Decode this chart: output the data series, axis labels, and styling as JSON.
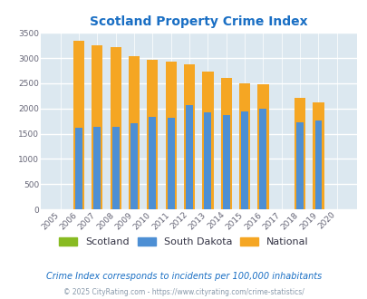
{
  "title": "Scotland Property Crime Index",
  "title_color": "#1a6fc4",
  "years": [
    2005,
    2006,
    2007,
    2008,
    2009,
    2010,
    2011,
    2012,
    2013,
    2014,
    2015,
    2016,
    2017,
    2018,
    2019,
    2020
  ],
  "scotland": [
    0,
    0,
    0,
    0,
    0,
    0,
    0,
    0,
    0,
    0,
    0,
    0,
    0,
    0,
    0,
    0
  ],
  "south_dakota": [
    0,
    1620,
    1640,
    1640,
    1700,
    1840,
    1820,
    2060,
    1930,
    1870,
    1950,
    2000,
    0,
    1720,
    1770,
    0
  ],
  "national": [
    0,
    3340,
    3260,
    3210,
    3040,
    2960,
    2930,
    2870,
    2730,
    2600,
    2500,
    2480,
    0,
    2210,
    2120,
    0
  ],
  "scotland_color": "#88bb22",
  "south_dakota_color": "#4d8fd4",
  "national_color": "#f5a623",
  "bg_color": "#dce8f0",
  "ylim": [
    0,
    3500
  ],
  "yticks": [
    0,
    500,
    1000,
    1500,
    2000,
    2500,
    3000,
    3500
  ],
  "bar_width": 0.6,
  "subtitle": "Crime Index corresponds to incidents per 100,000 inhabitants",
  "subtitle_color": "#1a6fc4",
  "footer": "© 2025 CityRating.com - https://www.cityrating.com/crime-statistics/",
  "footer_color": "#8899aa"
}
